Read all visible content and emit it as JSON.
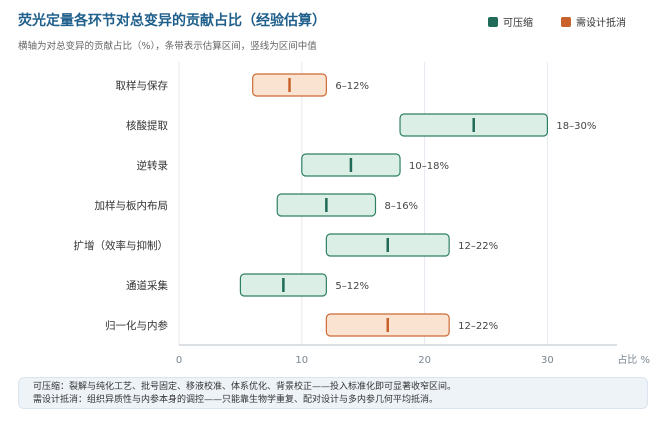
{
  "header": {
    "title": "荧光定量各环节对总变异的贡献占比（经验估算）",
    "subtitle": "横轴为对总变异的贡献占比（%），条带表示估算区间，竖线为区间中值"
  },
  "legend": [
    {
      "label": "可压缩",
      "color": "#1f6b57",
      "icon": "square"
    },
    {
      "label": "需设计抵消",
      "color": "#c8622a",
      "icon": "square"
    }
  ],
  "colors": {
    "compressible_fill": "#dcefe6",
    "compressible_stroke": "#2e8062",
    "compressible_mark": "#1f6b57",
    "offset_fill": "#fbe3d1",
    "offset_stroke": "#cc6b35",
    "offset_mark": "#c8622a",
    "grid": "#e6eaee"
  },
  "chart_data": {
    "type": "range-bar",
    "title": "荧光定量各环节对总变异的贡献占比（经验估算）",
    "xlabel": "占比 %",
    "xlim": [
      0,
      35
    ],
    "xticks": [
      0,
      10,
      20,
      30
    ],
    "grid": true,
    "legend_position": "top-right",
    "categories": [
      "取样与保存",
      "核酸提取",
      "逆转录",
      "加样与板内布局",
      "扩增（效率与抑制）",
      "通道采集",
      "归一化与内参"
    ],
    "series": [
      {
        "category": "取样与保存",
        "low": 6,
        "high": 12,
        "mid": 9,
        "label": "6–12%",
        "group": "需设计抵消"
      },
      {
        "category": "核酸提取",
        "low": 18,
        "high": 30,
        "mid": 24,
        "label": "18–30%",
        "group": "可压缩"
      },
      {
        "category": "逆转录",
        "low": 10,
        "high": 18,
        "mid": 14,
        "label": "10–18%",
        "group": "可压缩"
      },
      {
        "category": "加样与板内布局",
        "low": 8,
        "high": 16,
        "mid": 12,
        "label": "8–16%",
        "group": "可压缩"
      },
      {
        "category": "扩增（效率与抑制）",
        "low": 12,
        "high": 22,
        "mid": 17,
        "label": "12–22%",
        "group": "可压缩"
      },
      {
        "category": "通道采集",
        "low": 5,
        "high": 12,
        "mid": 8.5,
        "label": "5–12%",
        "group": "可压缩"
      },
      {
        "category": "归一化与内参",
        "low": 12,
        "high": 22,
        "mid": 17,
        "label": "12–22%",
        "group": "需设计抵消"
      }
    ]
  },
  "notes": [
    "可压缩：裂解与纯化工艺、批号固定、移液校准、体系优化、背景校正——投入标准化即可显著收窄区间。",
    "需设计抵消：组织异质性与内参本身的调控——只能靠生物学重复、配对设计与多内参几何平均抵消。"
  ]
}
